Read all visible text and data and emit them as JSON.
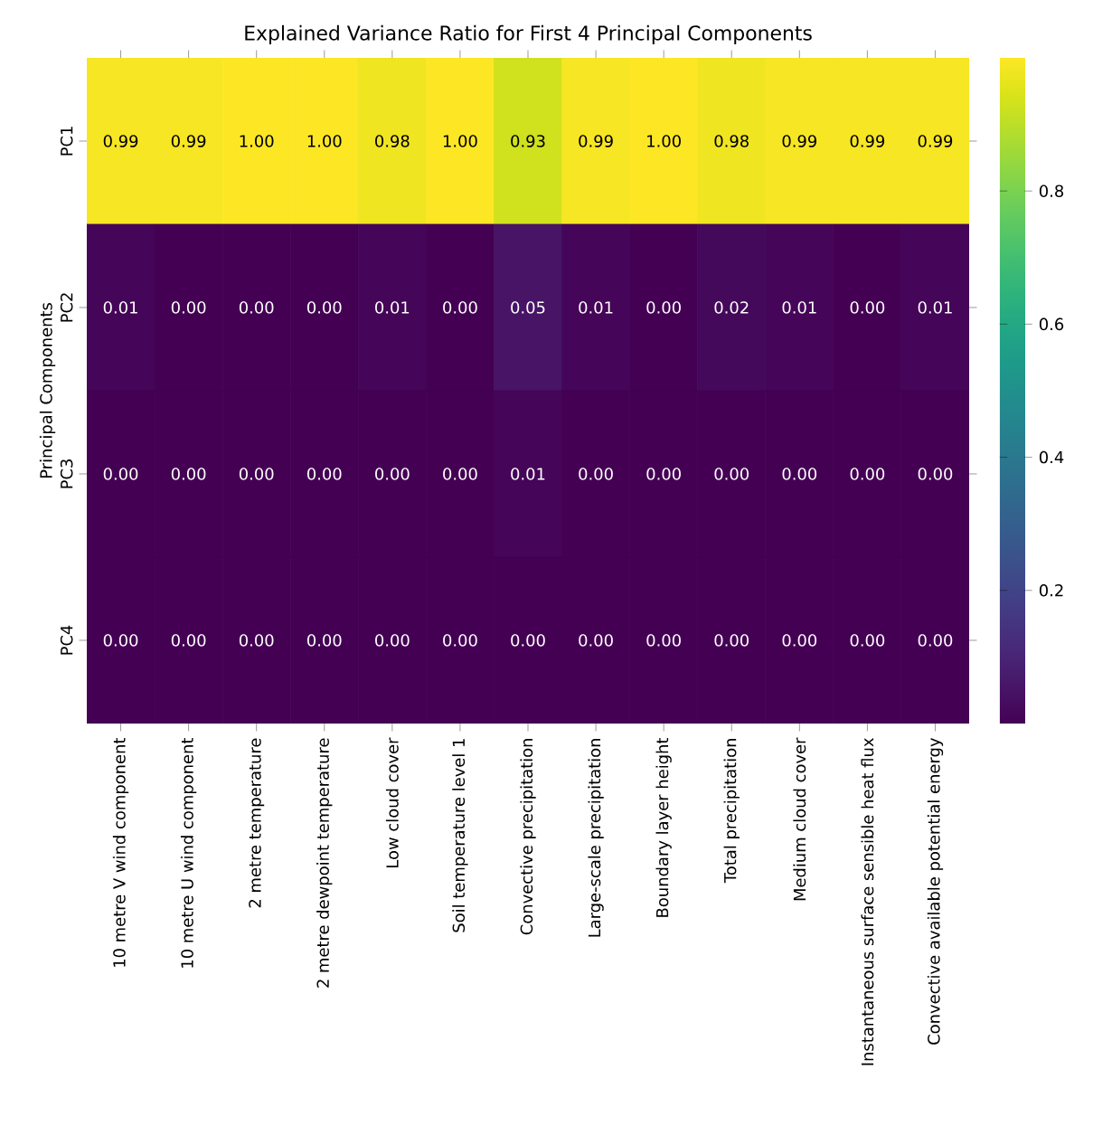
{
  "chart_data": {
    "type": "heatmap",
    "title": "Explained Variance Ratio for First 4 Principal Components",
    "ylabel": "Principal Components",
    "categories": [
      "10 metre V wind component",
      "10 metre U wind component",
      "2 metre temperature",
      "2 metre dewpoint temperature",
      "Low cloud cover",
      "Soil temperature level 1",
      "Convective precipitation",
      "Large-scale precipitation",
      "Boundary layer height",
      "Total precipitation",
      "Medium cloud cover",
      "Instantaneous surface sensible heat flux",
      "Convective available potential energy"
    ],
    "y_categories": [
      "PC1",
      "PC2",
      "PC3",
      "PC4"
    ],
    "cells": [
      [
        0.99,
        0.99,
        1.0,
        1.0,
        0.98,
        1.0,
        0.93,
        0.99,
        1.0,
        0.98,
        0.99,
        0.99,
        0.99
      ],
      [
        0.01,
        0.0,
        0.0,
        0.0,
        0.01,
        0.0,
        0.05,
        0.01,
        0.0,
        0.02,
        0.01,
        0.0,
        0.01
      ],
      [
        0.0,
        0.0,
        0.0,
        0.0,
        0.0,
        0.0,
        0.01,
        0.0,
        0.0,
        0.0,
        0.0,
        0.0,
        0.0
      ],
      [
        0.0,
        0.0,
        0.0,
        0.0,
        0.0,
        0.0,
        0.0,
        0.0,
        0.0,
        0.0,
        0.0,
        0.0,
        0.0
      ]
    ],
    "cell_labels": [
      [
        "0.99",
        "0.99",
        "1.00",
        "1.00",
        "0.98",
        "1.00",
        "0.93",
        "0.99",
        "1.00",
        "0.98",
        "0.99",
        "0.99",
        "0.99"
      ],
      [
        "0.01",
        "0.00",
        "0.00",
        "0.00",
        "0.01",
        "0.00",
        "0.05",
        "0.01",
        "0.00",
        "0.02",
        "0.01",
        "0.00",
        "0.01"
      ],
      [
        "0.00",
        "0.00",
        "0.00",
        "0.00",
        "0.00",
        "0.00",
        "0.01",
        "0.00",
        "0.00",
        "0.00",
        "0.00",
        "0.00",
        "0.00"
      ],
      [
        "0.00",
        "0.00",
        "0.00",
        "0.00",
        "0.00",
        "0.00",
        "0.00",
        "0.00",
        "0.00",
        "0.00",
        "0.00",
        "0.00",
        "0.00"
      ]
    ],
    "clim": [
      0,
      1
    ],
    "cticks": [
      0.2,
      0.4,
      0.6,
      0.8
    ]
  }
}
